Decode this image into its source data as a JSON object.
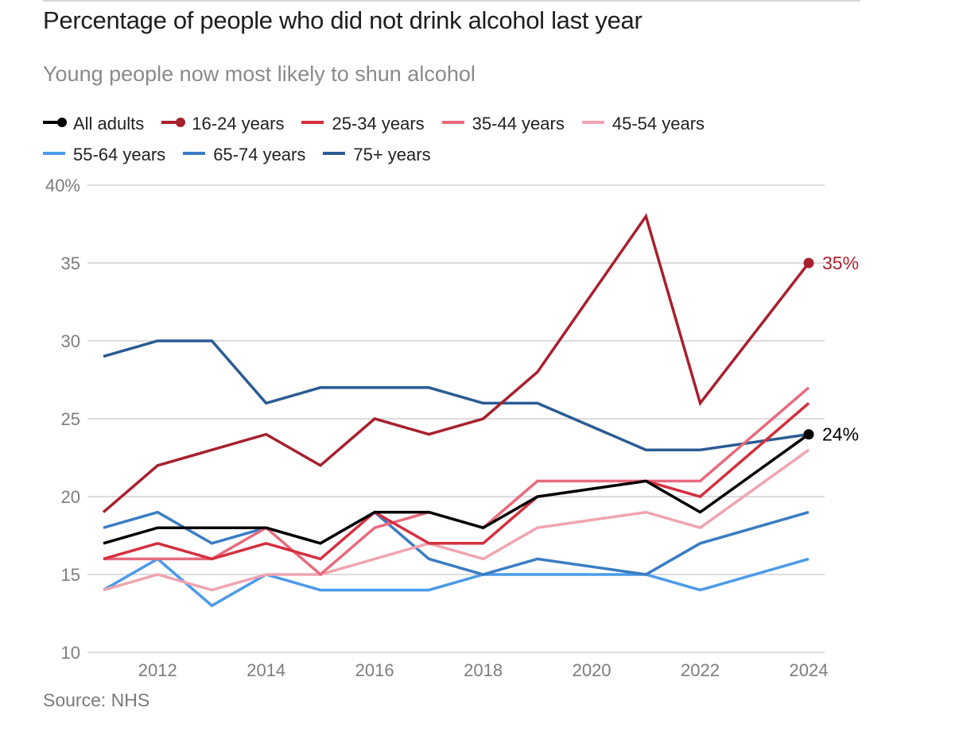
{
  "header": {
    "title": "Percentage of people who did not drink alcohol last year",
    "subtitle": "Young people now most likely to shun alcohol"
  },
  "source": "Source: NHS",
  "chart_data": {
    "type": "line",
    "title": "Percentage of people who did not drink alcohol last year",
    "subtitle": "Young people now most likely to shun alcohol",
    "xlabel": "",
    "ylabel": "",
    "x": [
      2011,
      2012,
      2013,
      2014,
      2015,
      2016,
      2017,
      2018,
      2019,
      2021,
      2022,
      2024
    ],
    "xlim": [
      2011,
      2024
    ],
    "ylim": [
      10,
      40
    ],
    "x_ticks": [
      2012,
      2014,
      2016,
      2018,
      2020,
      2022,
      2024
    ],
    "x_tick_labels": [
      "2012",
      "2014",
      "2016",
      "2018",
      "2020",
      "2022",
      "2024"
    ],
    "y_ticks": [
      10,
      15,
      20,
      25,
      30,
      35,
      40
    ],
    "y_tick_labels": [
      "10",
      "15",
      "20",
      "25",
      "30",
      "35",
      "40%"
    ],
    "grid": true,
    "legend_position": "top",
    "series": [
      {
        "name": "All adults",
        "color": "#000000",
        "marker": true,
        "values": [
          17,
          18,
          18,
          18,
          17,
          19,
          19,
          18,
          20,
          21,
          19,
          24
        ],
        "end_label": "24%"
      },
      {
        "name": "16-24 years",
        "color": "#a8202e",
        "marker": true,
        "values": [
          19,
          22,
          23,
          24,
          22,
          25,
          24,
          25,
          28,
          38,
          26,
          35
        ],
        "end_label": "35%"
      },
      {
        "name": "25-34 years",
        "color": "#d42f3e",
        "marker": false,
        "values": [
          16,
          17,
          16,
          17,
          16,
          19,
          17,
          17,
          20,
          21,
          20,
          26
        ]
      },
      {
        "name": "35-44 years",
        "color": "#e86a7c",
        "marker": false,
        "values": [
          16,
          16,
          16,
          18,
          15,
          18,
          19,
          18,
          21,
          21,
          21,
          27
        ]
      },
      {
        "name": "45-54 years",
        "color": "#f0a4af",
        "marker": false,
        "values": [
          14,
          15,
          14,
          15,
          15,
          16,
          17,
          16,
          18,
          19,
          18,
          23
        ]
      },
      {
        "name": "55-64 years",
        "color": "#4b9ae8",
        "marker": false,
        "values": [
          14,
          16,
          13,
          15,
          14,
          14,
          14,
          15,
          15,
          15,
          14,
          16
        ]
      },
      {
        "name": "65-74 years",
        "color": "#3a7cc4",
        "marker": false,
        "values": [
          18,
          19,
          17,
          18,
          17,
          19,
          16,
          15,
          16,
          15,
          17,
          19
        ]
      },
      {
        "name": "75+ years",
        "color": "#2b5b93",
        "marker": false,
        "values": [
          29,
          30,
          30,
          26,
          27,
          27,
          27,
          26,
          26,
          23,
          23,
          24
        ]
      }
    ],
    "draw_order": [
      "75+ years",
      "55-64 years",
      "65-74 years",
      "45-54 years",
      "35-44 years",
      "25-34 years",
      "16-24 years",
      "All adults"
    ]
  }
}
